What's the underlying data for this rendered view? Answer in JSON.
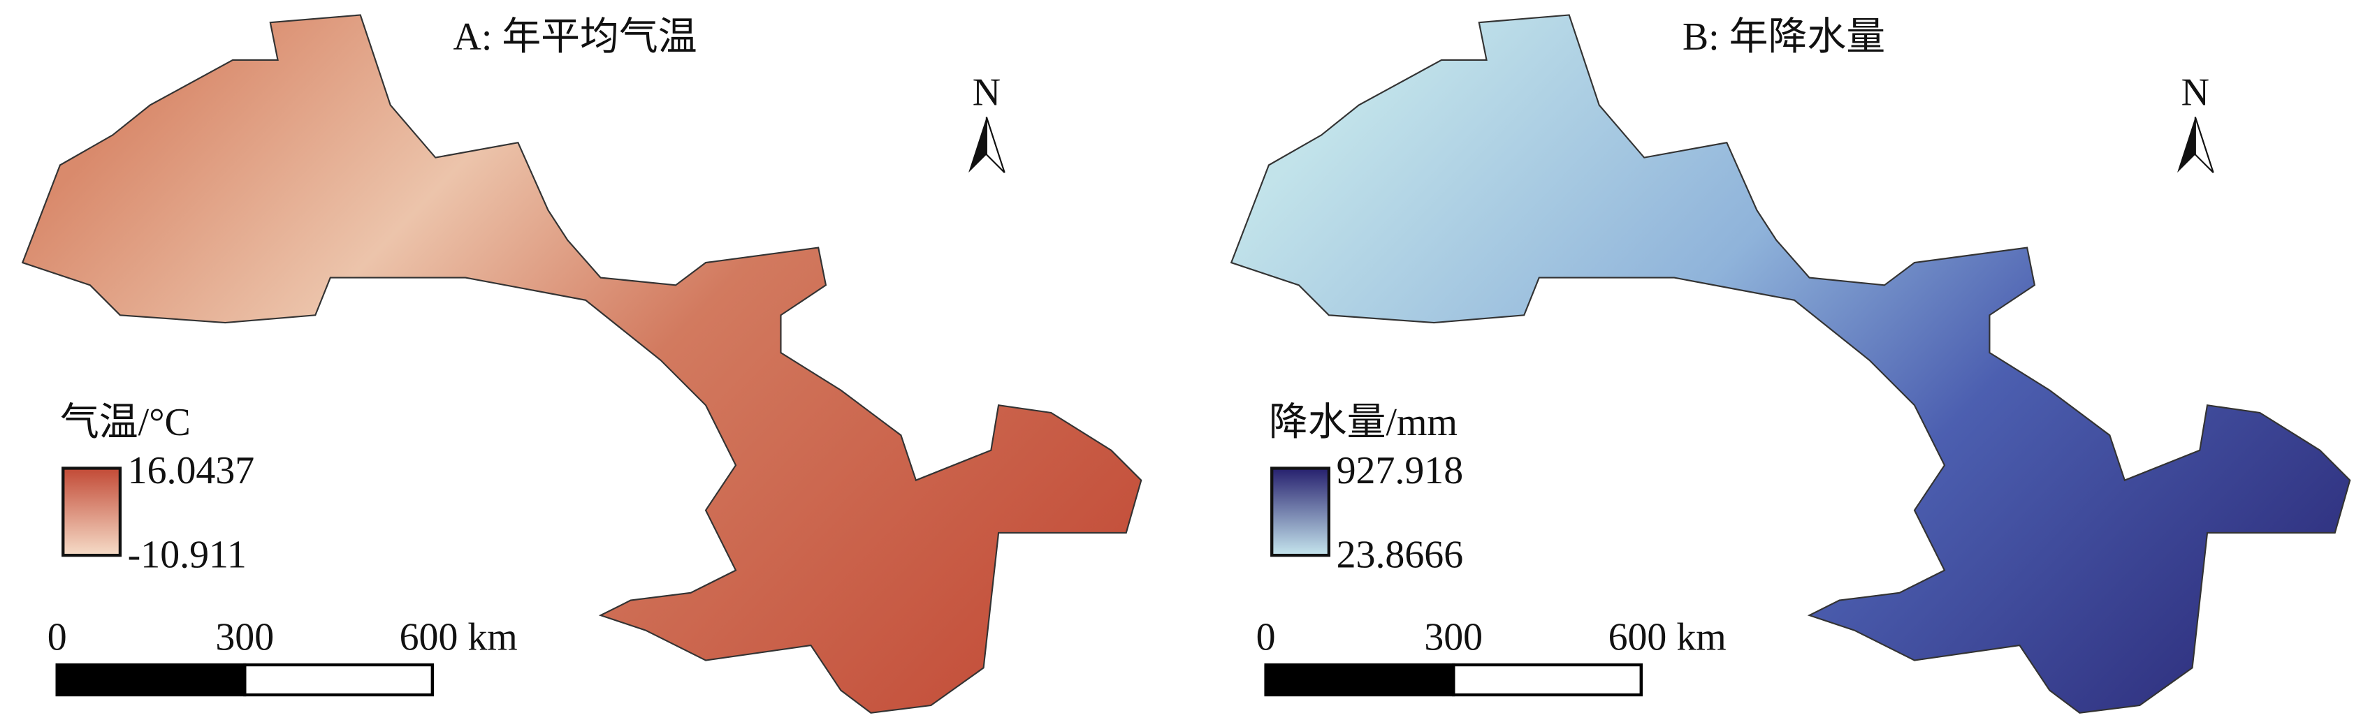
{
  "panels": [
    {
      "title": "A: 年平均气温",
      "north": "N",
      "legend": {
        "title": "气温/°C",
        "max": 16.0437,
        "min": -10.911
      },
      "scale_bar": {
        "ticks": [
          0,
          300,
          {
            "value": 600,
            "label": "600 km"
          }
        ]
      }
    },
    {
      "title": "B: 年降水量",
      "north": "N",
      "legend": {
        "title": "降水量/mm",
        "max": 927.918,
        "min": 23.8666
      },
      "scale_bar": {
        "ticks": [
          0,
          300,
          {
            "value": 600,
            "label": "600 km"
          }
        ]
      }
    }
  ]
}
